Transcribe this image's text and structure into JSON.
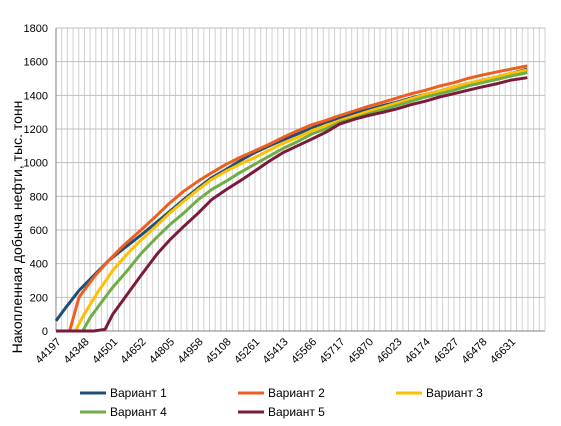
{
  "chart_data": {
    "type": "line",
    "title": "",
    "xlabel": "",
    "ylabel": "Накопленная добыча нефти, тыс. тонн",
    "ylim": [
      0,
      1800
    ],
    "yticks": [
      0,
      200,
      400,
      600,
      800,
      1000,
      1200,
      1400,
      1600,
      1800
    ],
    "xlim": [
      44197,
      46815
    ],
    "xticks": [
      44197,
      44348,
      44501,
      44652,
      44805,
      44958,
      45108,
      45261,
      45413,
      45566,
      45717,
      45870,
      46023,
      46174,
      46327,
      46478,
      46631
    ],
    "grid": true,
    "legend_position": "bottom",
    "series": [
      {
        "name": "Вариант 1",
        "color": "#1f4e79",
        "x": [
          44197,
          44250,
          44320,
          44400,
          44480,
          44560,
          44652,
          44740,
          44805,
          44880,
          44958,
          45030,
          45108,
          45180,
          45261,
          45340,
          45413,
          45490,
          45566,
          45640,
          45717,
          45800,
          45870,
          45950,
          46023,
          46100,
          46174,
          46250,
          46327,
          46400,
          46478,
          46560,
          46631,
          46720
        ],
        "y": [
          60,
          140,
          240,
          330,
          420,
          490,
          570,
          650,
          710,
          780,
          850,
          910,
          960,
          1010,
          1060,
          1100,
          1135,
          1170,
          1205,
          1240,
          1265,
          1295,
          1315,
          1340,
          1360,
          1385,
          1405,
          1425,
          1450,
          1470,
          1490,
          1510,
          1530,
          1555
        ]
      },
      {
        "name": "Вариант 2",
        "color": "#ed5f21",
        "x": [
          44270,
          44320,
          44400,
          44480,
          44560,
          44652,
          44740,
          44805,
          44880,
          44958,
          45030,
          45108,
          45180,
          45261,
          45340,
          45413,
          45490,
          45566,
          45640,
          45717,
          45800,
          45870,
          45950,
          46023,
          46100,
          46174,
          46250,
          46327,
          46400,
          46478,
          46560,
          46631,
          46720
        ],
        "y": [
          0,
          200,
          320,
          420,
          510,
          600,
          690,
          760,
          830,
          890,
          940,
          990,
          1030,
          1070,
          1110,
          1150,
          1190,
          1225,
          1250,
          1280,
          1310,
          1335,
          1360,
          1385,
          1410,
          1430,
          1455,
          1475,
          1500,
          1520,
          1540,
          1555,
          1575
        ]
      },
      {
        "name": "Вариант 3",
        "color": "#ffc000",
        "x": [
          44300,
          44348,
          44420,
          44501,
          44580,
          44652,
          44740,
          44805,
          44880,
          44958,
          45030,
          45108,
          45180,
          45261,
          45340,
          45413,
          45490,
          45566,
          45640,
          45717,
          45800,
          45870,
          45950,
          46023,
          46100,
          46174,
          46250,
          46327,
          46400,
          46478,
          46560,
          46631,
          46720
        ],
        "y": [
          0,
          100,
          230,
          360,
          460,
          540,
          630,
          700,
          770,
          840,
          900,
          950,
          990,
          1030,
          1075,
          1115,
          1150,
          1190,
          1220,
          1250,
          1280,
          1305,
          1330,
          1355,
          1380,
          1405,
          1425,
          1450,
          1470,
          1490,
          1510,
          1530,
          1550
        ]
      },
      {
        "name": "Вариант 4",
        "color": "#70ad47",
        "x": [
          44340,
          44380,
          44440,
          44501,
          44580,
          44652,
          44740,
          44805,
          44880,
          44958,
          45030,
          45108,
          45180,
          45261,
          45340,
          45413,
          45490,
          45566,
          45640,
          45717,
          45800,
          45870,
          45950,
          46023,
          46100,
          46174,
          46250,
          46327,
          46400,
          46478,
          46560,
          46631,
          46720
        ],
        "y": [
          0,
          80,
          170,
          260,
          360,
          460,
          560,
          630,
          700,
          780,
          840,
          890,
          940,
          990,
          1040,
          1085,
          1125,
          1170,
          1200,
          1240,
          1265,
          1290,
          1315,
          1340,
          1365,
          1390,
          1410,
          1430,
          1455,
          1475,
          1495,
          1515,
          1535
        ]
      },
      {
        "name": "Вариант 5",
        "color": "#7b1a3f",
        "x": [
          44197,
          44400,
          44460,
          44501,
          44580,
          44652,
          44740,
          44805,
          44880,
          44958,
          45030,
          45108,
          45180,
          45261,
          45340,
          45413,
          45490,
          45566,
          45640,
          45717,
          45800,
          45870,
          45950,
          46023,
          46100,
          46174,
          46250,
          46327,
          46400,
          46478,
          46560,
          46631,
          46720
        ],
        "y": [
          0,
          0,
          10,
          100,
          220,
          330,
          460,
          540,
          620,
          700,
          780,
          840,
          890,
          950,
          1010,
          1060,
          1100,
          1140,
          1180,
          1230,
          1260,
          1280,
          1300,
          1320,
          1345,
          1365,
          1390,
          1410,
          1430,
          1450,
          1470,
          1490,
          1505
        ]
      }
    ]
  }
}
